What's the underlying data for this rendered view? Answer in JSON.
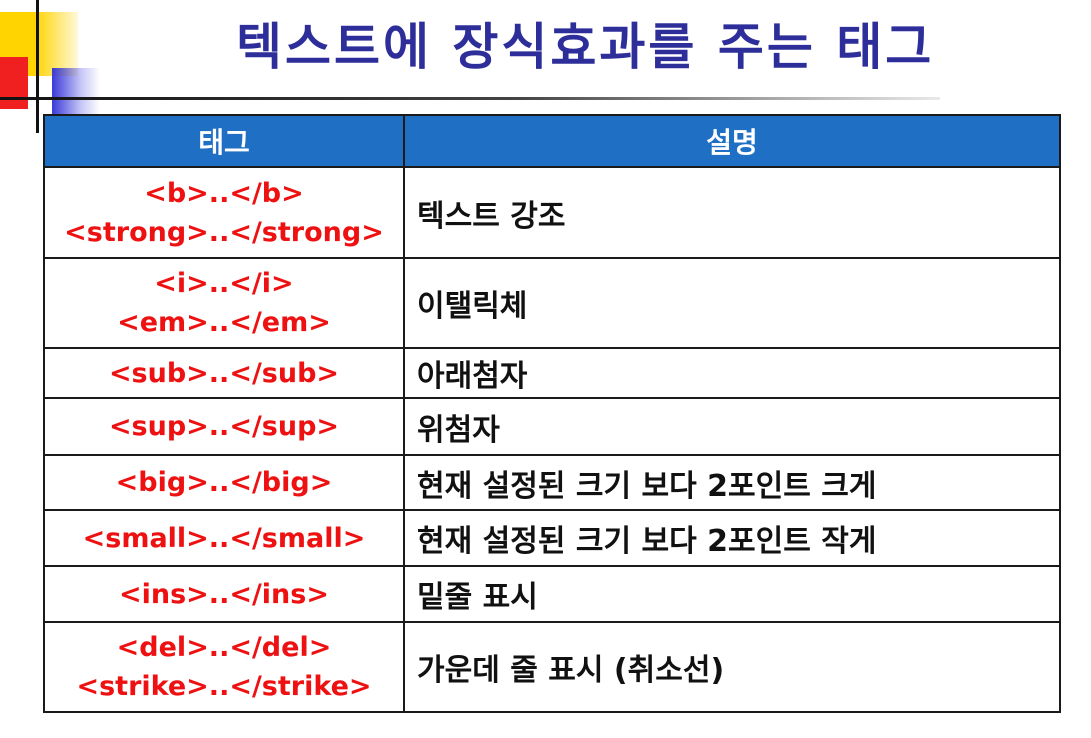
{
  "title": "텍스트에 장식효과를 주는 태그",
  "table": {
    "headers": {
      "tag": "태그",
      "description": "설명"
    },
    "rows": [
      {
        "tags": [
          "<b>..</b>",
          "<strong>..</strong>"
        ],
        "description": "텍스트 강조"
      },
      {
        "tags": [
          "<i>..</i>",
          "<em>..</em>"
        ],
        "description": "이탤릭체"
      },
      {
        "tags": [
          "<sub>..</sub>"
        ],
        "description": "아래첨자"
      },
      {
        "tags": [
          "<sup>..</sup>"
        ],
        "description": "위첨자"
      },
      {
        "tags": [
          "<big>..</big>"
        ],
        "description": "현재 설정된 크기 보다 2포인트 크게"
      },
      {
        "tags": [
          "<small>..</small>"
        ],
        "description": "현재 설정된 크기 보다 2포인트 작게"
      },
      {
        "tags": [
          "<ins>..</ins>"
        ],
        "description": "밑줄 표시"
      },
      {
        "tags": [
          "<del>..</del>",
          "<strike>..</strike>"
        ],
        "description": "가운데 줄 표시 (취소선)"
      }
    ]
  },
  "colors": {
    "title": "#2e2e9a",
    "header_bg": "#1f6fc5",
    "tag_text": "#ee1111",
    "description_text": "#111111"
  }
}
